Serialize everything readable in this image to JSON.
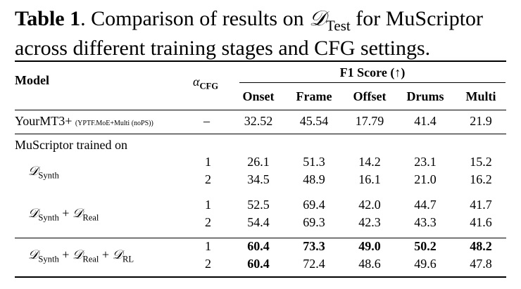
{
  "caption": {
    "label": "Table 1",
    "text_line1": ". Comparison of results on ",
    "dataset_symbol": "𝒟",
    "dataset_sub": "Test",
    "text_line1_end": " for MuScriptor",
    "text_line2": "across different training stages and CFG settings."
  },
  "table": {
    "header": {
      "model": "Model",
      "alpha": "α",
      "alpha_sub": "CFG",
      "group": "F1 Score (↑)",
      "columns": [
        "Onset",
        "Frame",
        "Offset",
        "Drums",
        "Multi"
      ]
    },
    "baseline": {
      "name": "YourMT3+",
      "detail": "(YPTF.MoE+Multi (noPS))",
      "alpha": "–",
      "values": [
        "32.52",
        "45.54",
        "17.79",
        "41.4",
        "21.9"
      ]
    },
    "section_label": "MuScriptor trained on",
    "groups": [
      {
        "label_parts": [
          "𝒟",
          "Synth"
        ],
        "label_text": "",
        "rows": [
          {
            "alpha": "1",
            "values": [
              "26.1",
              "51.3",
              "14.2",
              "23.1",
              "15.2"
            ],
            "bold": [
              false,
              false,
              false,
              false,
              false
            ]
          },
          {
            "alpha": "2",
            "values": [
              "34.5",
              "48.9",
              "16.1",
              "21.0",
              "16.2"
            ],
            "bold": [
              false,
              false,
              false,
              false,
              false
            ]
          }
        ]
      },
      {
        "label_text": "",
        "rows": [
          {
            "alpha": "1",
            "values": [
              "52.5",
              "69.4",
              "42.0",
              "44.7",
              "41.7"
            ],
            "bold": [
              false,
              false,
              false,
              false,
              false
            ]
          },
          {
            "alpha": "2",
            "values": [
              "54.4",
              "69.3",
              "42.3",
              "43.3",
              "41.6"
            ],
            "bold": [
              false,
              false,
              false,
              false,
              false
            ]
          }
        ]
      },
      {
        "label_text": "",
        "rows": [
          {
            "alpha": "1",
            "values": [
              "60.4",
              "73.3",
              "49.0",
              "50.2",
              "48.2"
            ],
            "bold": [
              true,
              true,
              true,
              true,
              true
            ]
          },
          {
            "alpha": "2",
            "values": [
              "60.4",
              "72.4",
              "48.6",
              "49.6",
              "47.8"
            ],
            "bold": [
              true,
              false,
              false,
              false,
              false
            ]
          }
        ]
      }
    ],
    "group_labels": [
      {
        "parts": [
          {
            "sym": "𝒟",
            "sub": "Synth"
          }
        ]
      },
      {
        "parts": [
          {
            "sym": "𝒟",
            "sub": "Synth"
          },
          {
            "sym": "𝒟",
            "sub": "Real"
          }
        ]
      },
      {
        "parts": [
          {
            "sym": "𝒟",
            "sub": "Synth"
          },
          {
            "sym": "𝒟",
            "sub": "Real"
          },
          {
            "sym": "𝒟",
            "sub": "RL"
          }
        ]
      }
    ],
    "plus": "+"
  }
}
